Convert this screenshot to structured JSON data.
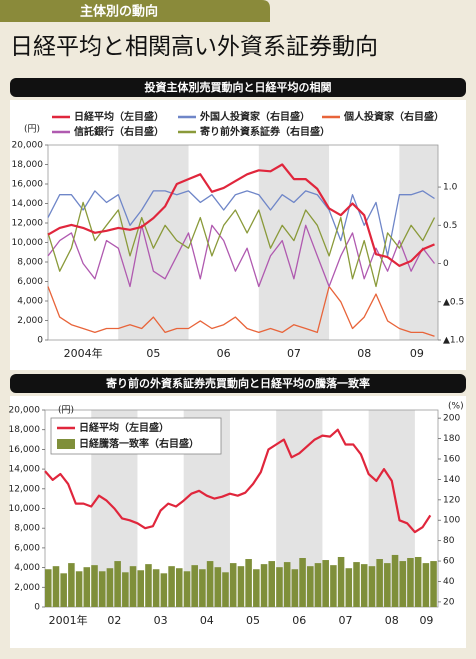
{
  "header": {
    "tab": "主体別の動向",
    "title": "日経平均と相関高い外資系証券動向"
  },
  "chart_data": [
    {
      "type": "line",
      "title": "投資主体別売買動向と日経平均の相関",
      "ylabel": "(円)",
      "x": [
        2004,
        2004.167,
        2004.333,
        2004.5,
        2004.667,
        2004.833,
        2005,
        2005.167,
        2005.333,
        2005.5,
        2005.667,
        2005.833,
        2006,
        2006.167,
        2006.333,
        2006.5,
        2006.667,
        2006.833,
        2007,
        2007.167,
        2007.333,
        2007.5,
        2007.667,
        2007.833,
        2008,
        2008.167,
        2008.333,
        2008.5,
        2008.667,
        2008.833,
        2009,
        2009.167,
        2009.333,
        2009.5
      ],
      "xlim": [
        2004,
        2009.55
      ],
      "xticks": [
        {
          "value": 2004.5,
          "label": "2004年"
        },
        {
          "value": 2005.5,
          "label": "05"
        },
        {
          "value": 2006.5,
          "label": "06"
        },
        {
          "value": 2007.5,
          "label": "07"
        },
        {
          "value": 2008.5,
          "label": "08"
        },
        {
          "value": 2009.25,
          "label": "09"
        }
      ],
      "ylim": [
        0,
        20000
      ],
      "yticks": [
        0,
        {
          "value": 2000,
          "label": "2,000"
        },
        {
          "value": 4000,
          "label": "4,000"
        },
        {
          "value": 6000,
          "label": "6,000"
        },
        {
          "value": 8000,
          "label": "8,000"
        },
        {
          "value": 10000,
          "label": "10,000"
        },
        {
          "value": 12000,
          "label": "12,000"
        },
        {
          "value": 14000,
          "label": "14,000"
        },
        {
          "value": 16000,
          "label": "16,000"
        },
        {
          "value": 18000,
          "label": "18,000"
        },
        {
          "value": 20000,
          "label": "20,000"
        }
      ],
      "y2lim": [
        -1,
        1.55
      ],
      "y2ticks": [
        {
          "value": -1,
          "label": "▲1.0"
        },
        {
          "value": -0.5,
          "label": "▲0.5"
        },
        0,
        0.5,
        {
          "value": 1,
          "label": "1.0"
        }
      ],
      "series": [
        {
          "name": "外国人投資家（右目盛）",
          "color": "#6f86c8",
          "axis": "y2",
          "values": [
            0.6,
            0.9,
            0.9,
            0.7,
            0.95,
            0.8,
            0.9,
            0.5,
            0.7,
            0.95,
            0.95,
            0.9,
            0.95,
            0.8,
            0.9,
            0.7,
            0.9,
            0.95,
            0.9,
            0.7,
            0.9,
            0.8,
            0.95,
            0.9,
            0.7,
            0.3,
            0.9,
            0.5,
            0.8,
            0.1,
            0.9,
            0.9,
            0.95,
            0.85
          ]
        },
        {
          "name": "個人投資家（右目盛）",
          "color": "#e8643a",
          "axis": "y2",
          "values": [
            -0.3,
            -0.7,
            -0.8,
            -0.85,
            -0.9,
            -0.85,
            -0.85,
            -0.8,
            -0.85,
            -0.7,
            -0.9,
            -0.85,
            -0.85,
            -0.75,
            -0.85,
            -0.8,
            -0.7,
            -0.85,
            -0.9,
            -0.85,
            -0.9,
            -0.8,
            -0.85,
            -0.9,
            -0.3,
            -0.5,
            -0.85,
            -0.7,
            -0.4,
            -0.75,
            -0.85,
            -0.9,
            -0.9,
            -0.95
          ]
        },
        {
          "name": "信託銀行（右目盛）",
          "color": "#b05ab0",
          "axis": "y2",
          "values": [
            0.1,
            0.3,
            0.4,
            0,
            -0.2,
            0.3,
            0.2,
            -0.3,
            0.5,
            -0.1,
            -0.2,
            0.1,
            0.4,
            -0.2,
            0.5,
            0.3,
            -0.1,
            0.2,
            -0.3,
            0.1,
            0.3,
            -0.2,
            0.5,
            0.1,
            -0.3,
            0.1,
            0.4,
            -0.2,
            0.2,
            -0.1,
            0.3,
            -0.1,
            0.2,
            0
          ]
        },
        {
          "name": "寄り前外資系証券（右目盛）",
          "color": "#8a9a3a",
          "axis": "y2",
          "values": [
            0.4,
            -0.1,
            0.2,
            0.8,
            0.3,
            0.5,
            0.7,
            0.1,
            0.6,
            0.2,
            0.5,
            0.3,
            0.2,
            0.6,
            0.1,
            0.5,
            0.7,
            0.4,
            0.7,
            0.2,
            0.5,
            0.3,
            0.7,
            0.5,
            0.1,
            0.6,
            -0.2,
            0.3,
            -0.3,
            0.4,
            0.2,
            0.5,
            0.3,
            0.6
          ]
        },
        {
          "name": "日経平均（左目盛）",
          "color": "#e0263c",
          "values": [
            10800,
            11500,
            11800,
            11500,
            11000,
            11200,
            11500,
            11300,
            11600,
            12500,
            13700,
            16000,
            16500,
            17000,
            15200,
            15600,
            16300,
            17000,
            17400,
            17300,
            18000,
            16500,
            16500,
            15500,
            13500,
            12800,
            14000,
            12800,
            8800,
            8500,
            7600,
            8100,
            9300,
            9800
          ]
        }
      ]
    },
    {
      "type": "combo",
      "title": "寄り前の外資系証券売買動向と日経平均の騰落一致率",
      "ylabel": "(円)",
      "y2label": "(%)",
      "x": [
        2001,
        2001.167,
        2001.333,
        2001.5,
        2001.667,
        2001.833,
        2002,
        2002.167,
        2002.333,
        2002.5,
        2002.667,
        2002.833,
        2003,
        2003.167,
        2003.333,
        2003.5,
        2003.667,
        2003.833,
        2004,
        2004.167,
        2004.333,
        2004.5,
        2004.667,
        2004.833,
        2005,
        2005.167,
        2005.333,
        2005.5,
        2005.667,
        2005.833,
        2006,
        2006.167,
        2006.333,
        2006.5,
        2006.667,
        2006.833,
        2007,
        2007.167,
        2007.333,
        2007.5,
        2007.667,
        2007.833,
        2008,
        2008.167,
        2008.333,
        2008.5,
        2008.667,
        2008.833,
        2009,
        2009.167,
        2009.333
      ],
      "xlim": [
        2001,
        2009.5
      ],
      "xticks": [
        {
          "value": 2001.5,
          "label": "2001年"
        },
        {
          "value": 2002.5,
          "label": "02"
        },
        {
          "value": 2003.5,
          "label": "03"
        },
        {
          "value": 2004.5,
          "label": "04"
        },
        {
          "value": 2005.5,
          "label": "05"
        },
        {
          "value": 2006.5,
          "label": "06"
        },
        {
          "value": 2007.5,
          "label": "07"
        },
        {
          "value": 2008.5,
          "label": "08"
        },
        {
          "value": 2009.25,
          "label": "09"
        }
      ],
      "ylim": [
        0,
        20000
      ],
      "yticks": [
        0,
        {
          "value": 2000,
          "label": "2,000"
        },
        {
          "value": 4000,
          "label": "4,000"
        },
        {
          "value": 6000,
          "label": "6,000"
        },
        {
          "value": 8000,
          "label": "8,000"
        },
        {
          "value": 10000,
          "label": "10,000"
        },
        {
          "value": 12000,
          "label": "12,000"
        },
        {
          "value": 14000,
          "label": "14,000"
        },
        {
          "value": 16000,
          "label": "16,000"
        },
        {
          "value": 18000,
          "label": "18,000"
        },
        {
          "value": 20000,
          "label": "20,000"
        }
      ],
      "y2lim": [
        15,
        208
      ],
      "y2ticks": [
        20,
        40,
        60,
        80,
        100,
        120,
        140,
        160,
        180,
        200
      ],
      "series": [
        {
          "name": "日経騰落一致率（右目盛）",
          "color": "#7f8f3a",
          "type": "bar",
          "axis": "y2",
          "values": [
            52,
            55,
            48,
            58,
            50,
            54,
            56,
            50,
            53,
            60,
            49,
            55,
            51,
            57,
            52,
            48,
            55,
            53,
            50,
            56,
            52,
            60,
            54,
            49,
            58,
            55,
            62,
            52,
            57,
            60,
            54,
            59,
            52,
            63,
            55,
            58,
            61,
            56,
            64,
            53,
            59,
            57,
            55,
            62,
            58,
            66,
            60,
            63,
            64,
            58,
            60
          ]
        },
        {
          "name": "日経平均（左目盛）",
          "color": "#e0263c",
          "type": "line",
          "values": [
            13800,
            12900,
            13500,
            12500,
            10500,
            10500,
            10200,
            11300,
            10800,
            10000,
            9000,
            8800,
            8500,
            8000,
            8200,
            9800,
            10500,
            10200,
            10800,
            11500,
            11800,
            11300,
            11000,
            11200,
            11500,
            11300,
            11600,
            12500,
            13700,
            16000,
            16500,
            17000,
            15200,
            15600,
            16300,
            17000,
            17400,
            17300,
            18000,
            16500,
            16500,
            15500,
            13500,
            12800,
            14000,
            12800,
            8800,
            8500,
            7600,
            8100,
            9300
          ]
        }
      ]
    }
  ]
}
